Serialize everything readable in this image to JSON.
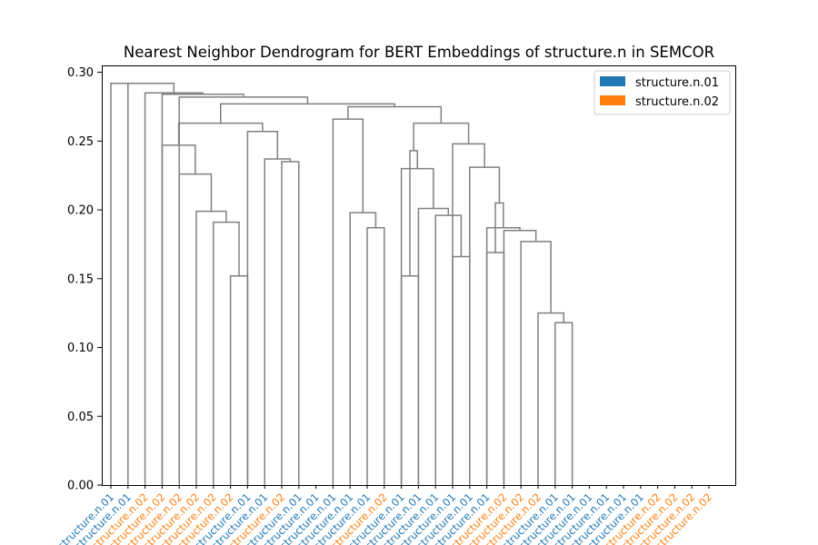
{
  "chart_data": {
    "type": "dendrogram",
    "title": "Nearest Neighbor Dendrogram for BERT Embeddings of structure.n in SEMCOR",
    "xlabel": "",
    "ylabel": "",
    "ylim": [
      0,
      0.305
    ],
    "yticks": [
      0.0,
      0.05,
      0.1,
      0.15,
      0.2,
      0.25,
      0.3
    ],
    "ytick_labels": [
      "0.00",
      "0.05",
      "0.10",
      "0.15",
      "0.20",
      "0.25",
      "0.30"
    ],
    "grid": false,
    "legend_position": "top-right",
    "link_color": "#808080",
    "legend": [
      {
        "label": "structure.n.01",
        "color": "#1f77b4"
      },
      {
        "label": "structure.n.02",
        "color": "#ff7f0e"
      }
    ],
    "leaves": [
      {
        "label": "structure.n.01",
        "sense": 0
      },
      {
        "label": "structure.n.01",
        "sense": 0
      },
      {
        "label": "structure.n.02",
        "sense": 1
      },
      {
        "label": "structure.n.02",
        "sense": 1
      },
      {
        "label": "structure.n.02",
        "sense": 1
      },
      {
        "label": "structure.n.02",
        "sense": 1
      },
      {
        "label": "structure.n.02",
        "sense": 1
      },
      {
        "label": "structure.n.02",
        "sense": 1
      },
      {
        "label": "structure.n.01",
        "sense": 0
      },
      {
        "label": "structure.n.01",
        "sense": 0
      },
      {
        "label": "structure.n.02",
        "sense": 1
      },
      {
        "label": "structure.n.01",
        "sense": 0
      },
      {
        "label": "structure.n.01",
        "sense": 0
      },
      {
        "label": "structure.n.01",
        "sense": 0
      },
      {
        "label": "structure.n.01",
        "sense": 0
      },
      {
        "label": "structure.n.01",
        "sense": 0
      },
      {
        "label": "structure.n.02",
        "sense": 1
      },
      {
        "label": "structure.n.01",
        "sense": 0
      },
      {
        "label": "structure.n.01",
        "sense": 0
      },
      {
        "label": "structure.n.01",
        "sense": 0
      },
      {
        "label": "structure.n.01",
        "sense": 0
      },
      {
        "label": "structure.n.01",
        "sense": 0
      },
      {
        "label": "structure.n.01",
        "sense": 0
      },
      {
        "label": "structure.n.02",
        "sense": 1
      },
      {
        "label": "structure.n.02",
        "sense": 1
      },
      {
        "label": "structure.n.02",
        "sense": 1
      },
      {
        "label": "structure.n.01",
        "sense": 0
      },
      {
        "label": "structure.n.01",
        "sense": 0
      },
      {
        "label": "structure.n.01",
        "sense": 0
      },
      {
        "label": "structure.n.01",
        "sense": 0
      },
      {
        "label": "structure.n.01",
        "sense": 0
      },
      {
        "label": "structure.n.01",
        "sense": 0
      },
      {
        "label": "structure.n.02",
        "sense": 1
      },
      {
        "label": "structure.n.02",
        "sense": 1
      },
      {
        "label": "structure.n.02",
        "sense": 1
      },
      {
        "label": "structure.n.02",
        "sense": 1
      }
    ],
    "merges": [
      {
        "left": 7,
        "right": 8,
        "height": 0.152
      },
      {
        "left": 6,
        "right": "c0",
        "height": 0.191
      },
      {
        "left": 5,
        "right": "c1",
        "height": 0.199
      },
      {
        "left": 4,
        "right": "c2",
        "height": 0.226
      },
      {
        "left": 3,
        "right": "c3",
        "height": 0.247
      },
      {
        "left": 10,
        "right": 11,
        "height": 0.235
      },
      {
        "left": 9,
        "right": "c5",
        "height": 0.237
      },
      {
        "left": 8,
        "right": "c6",
        "height": 0.257
      },
      {
        "left": "c4",
        "right": "c7",
        "height": 0.263
      },
      {
        "left": 15,
        "right": 16,
        "height": 0.187
      },
      {
        "left": 14,
        "right": "c9",
        "height": 0.198
      },
      {
        "left": 13,
        "right": "c10",
        "height": 0.266
      },
      {
        "left": 17,
        "right": 18,
        "height": 0.152
      },
      {
        "left": 20,
        "right": 21,
        "height": 0.166
      },
      {
        "left": 19,
        "right": "c13",
        "height": 0.196
      },
      {
        "left": 18,
        "right": "c14",
        "height": 0.201
      },
      {
        "left": 17,
        "right": "c15",
        "height": 0.23
      },
      {
        "left": "c12",
        "right": "c16",
        "height": 0.243
      },
      {
        "left": 22,
        "right": 23,
        "height": 0.169
      },
      {
        "left": 26,
        "right": 27,
        "height": 0.118
      },
      {
        "left": 25,
        "right": "c19",
        "height": 0.125
      },
      {
        "left": 24,
        "right": "c20",
        "height": 0.177
      },
      {
        "left": 23,
        "right": "c21",
        "height": 0.185
      },
      {
        "left": 22,
        "right": "c22",
        "height": 0.187
      },
      {
        "left": "c18",
        "right": "c23",
        "height": 0.205
      },
      {
        "left": 21,
        "right": "c24",
        "height": 0.231
      },
      {
        "left": 20,
        "right": "c25",
        "height": 0.248
      },
      {
        "left": "c17",
        "right": "c26",
        "height": 0.263
      },
      {
        "left": "c11",
        "right": "c27",
        "height": 0.275
      },
      {
        "left": "c8",
        "right": "c28",
        "height": 0.277
      },
      {
        "left": 4,
        "right": "c29",
        "height": 0.282
      },
      {
        "left": 3,
        "right": "c30",
        "height": 0.284
      },
      {
        "left": 2,
        "right": "c31",
        "height": 0.285
      },
      {
        "left": 1,
        "right": "c32",
        "height": 0.292
      },
      {
        "left": 0,
        "right": "c33",
        "height": 0.292
      }
    ]
  }
}
